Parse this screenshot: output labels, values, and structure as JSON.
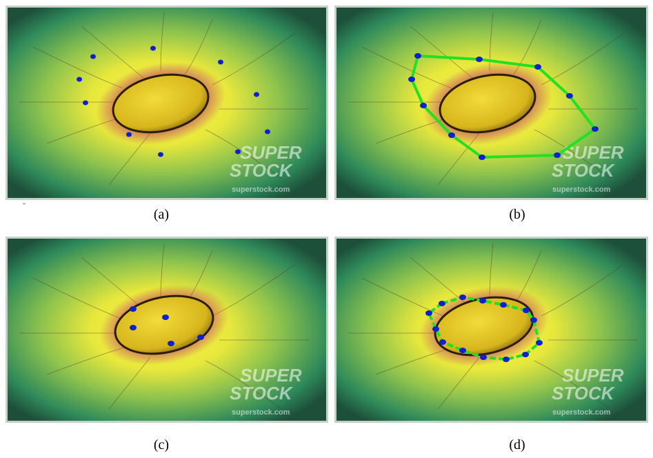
{
  "figure": {
    "panels": [
      {
        "id": "a",
        "label": "(a)",
        "watermark_line1": "SUPER",
        "watermark_line2": "STOCK",
        "watermark_url": "superstock.com"
      },
      {
        "id": "b",
        "label": "(b)",
        "watermark_line1": "SUPER",
        "watermark_line2": "STOCK",
        "watermark_url": "superstock.com"
      },
      {
        "id": "c",
        "label": "(c)",
        "watermark_line1": "SUPER",
        "watermark_line2": "STOCK",
        "watermark_url": "superstock.com"
      },
      {
        "id": "d",
        "label": "(d)",
        "watermark_line1": "SUPER",
        "watermark_line2": "STOCK",
        "watermark_url": "superstock.com"
      }
    ],
    "colors": {
      "control_point": "#1020d0",
      "contour": "#22e022",
      "cell_body": "#e0c820",
      "fringe": "#b03060",
      "background_outer": "#2e7a4a",
      "background_inner": "#f0ee40"
    }
  }
}
